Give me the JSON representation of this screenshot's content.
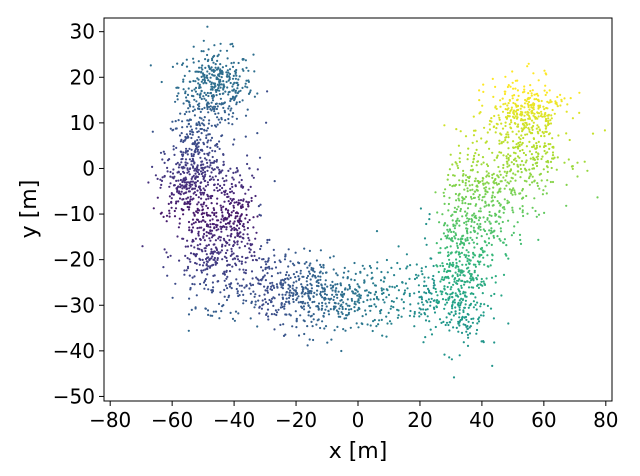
{
  "chart_data": {
    "type": "scatter",
    "title": "",
    "xlabel": "x [m]",
    "ylabel": "y [m]",
    "xlim": [
      -82,
      82
    ],
    "ylim": [
      -51,
      33
    ],
    "xticks": [
      -80,
      -60,
      -40,
      -20,
      0,
      20,
      40,
      60,
      80
    ],
    "xtick_labels": [
      "−80",
      "−60",
      "−40",
      "−20",
      "0",
      "20",
      "40",
      "60",
      "80"
    ],
    "yticks": [
      -50,
      -40,
      -30,
      -20,
      -10,
      0,
      10,
      20,
      30
    ],
    "ytick_labels": [
      "−50",
      "−40",
      "−30",
      "−20",
      "−10",
      "0",
      "10",
      "20",
      "30"
    ],
    "grid": false,
    "colormap": "viridis",
    "color_meaning": "point colour varies along the U-shaped track from dark purple (left arm) to yellow (right arm)",
    "cluster_centers": [
      {
        "x": -46,
        "y": 18,
        "spread_x": 6,
        "spread_y": 4,
        "n": 380
      },
      {
        "x": -52,
        "y": 3,
        "spread_x": 5,
        "spread_y": 5,
        "n": 260
      },
      {
        "x": -56,
        "y": -4,
        "spread_x": 4,
        "spread_y": 4,
        "n": 200
      },
      {
        "x": -40,
        "y": -10,
        "spread_x": 5,
        "spread_y": 6,
        "n": 230
      },
      {
        "x": -47,
        "y": -18,
        "spread_x": 6,
        "spread_y": 6,
        "n": 330
      },
      {
        "x": -28,
        "y": -26,
        "spread_x": 8,
        "spread_y": 4,
        "n": 240
      },
      {
        "x": -12,
        "y": -28,
        "spread_x": 7,
        "spread_y": 4,
        "n": 260
      },
      {
        "x": 2,
        "y": -28,
        "spread_x": 7,
        "spread_y": 4,
        "n": 140
      },
      {
        "x": 20,
        "y": -28,
        "spread_x": 7,
        "spread_y": 4,
        "n": 120
      },
      {
        "x": 32,
        "y": -28,
        "spread_x": 5,
        "spread_y": 6,
        "n": 250
      },
      {
        "x": 35,
        "y": -15,
        "spread_x": 5,
        "spread_y": 7,
        "n": 260
      },
      {
        "x": 42,
        "y": -6,
        "spread_x": 7,
        "spread_y": 7,
        "n": 280
      },
      {
        "x": 55,
        "y": 4,
        "spread_x": 7,
        "spread_y": 6,
        "n": 260
      },
      {
        "x": 54,
        "y": 12,
        "spread_x": 6,
        "spread_y": 4,
        "n": 260
      }
    ]
  }
}
